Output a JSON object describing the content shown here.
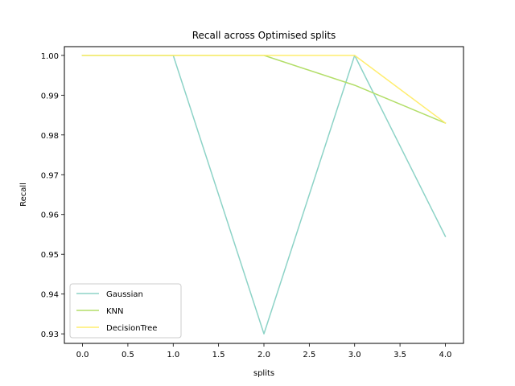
{
  "chart_data": {
    "type": "line",
    "title": "Recall across Optimised splits",
    "xlabel": "splits",
    "ylabel": "Recall",
    "xlim": [
      -0.2,
      4.2
    ],
    "ylim": [
      0.9276,
      1.0022
    ],
    "xticks": [
      "0.0",
      "0.5",
      "1.0",
      "1.5",
      "2.0",
      "2.5",
      "3.0",
      "3.5",
      "4.0"
    ],
    "yticks": [
      "0.93",
      "0.94",
      "0.95",
      "0.96",
      "0.97",
      "0.98",
      "0.99",
      "1.00"
    ],
    "grid": false,
    "legend_position": "lower left",
    "x": [
      0,
      1,
      2,
      3,
      4
    ],
    "series": [
      {
        "name": "Gaussian",
        "color": "#8dd3c7",
        "values": [
          1.0,
          1.0,
          0.93,
          1.0,
          0.9545
        ]
      },
      {
        "name": "KNN",
        "color": "#b3de69",
        "values": [
          1.0,
          1.0,
          1.0,
          0.9925,
          0.983
        ]
      },
      {
        "name": "DecisionTree",
        "color": "#ffed6f",
        "values": [
          1.0,
          1.0,
          1.0,
          1.0,
          0.983
        ]
      }
    ]
  }
}
